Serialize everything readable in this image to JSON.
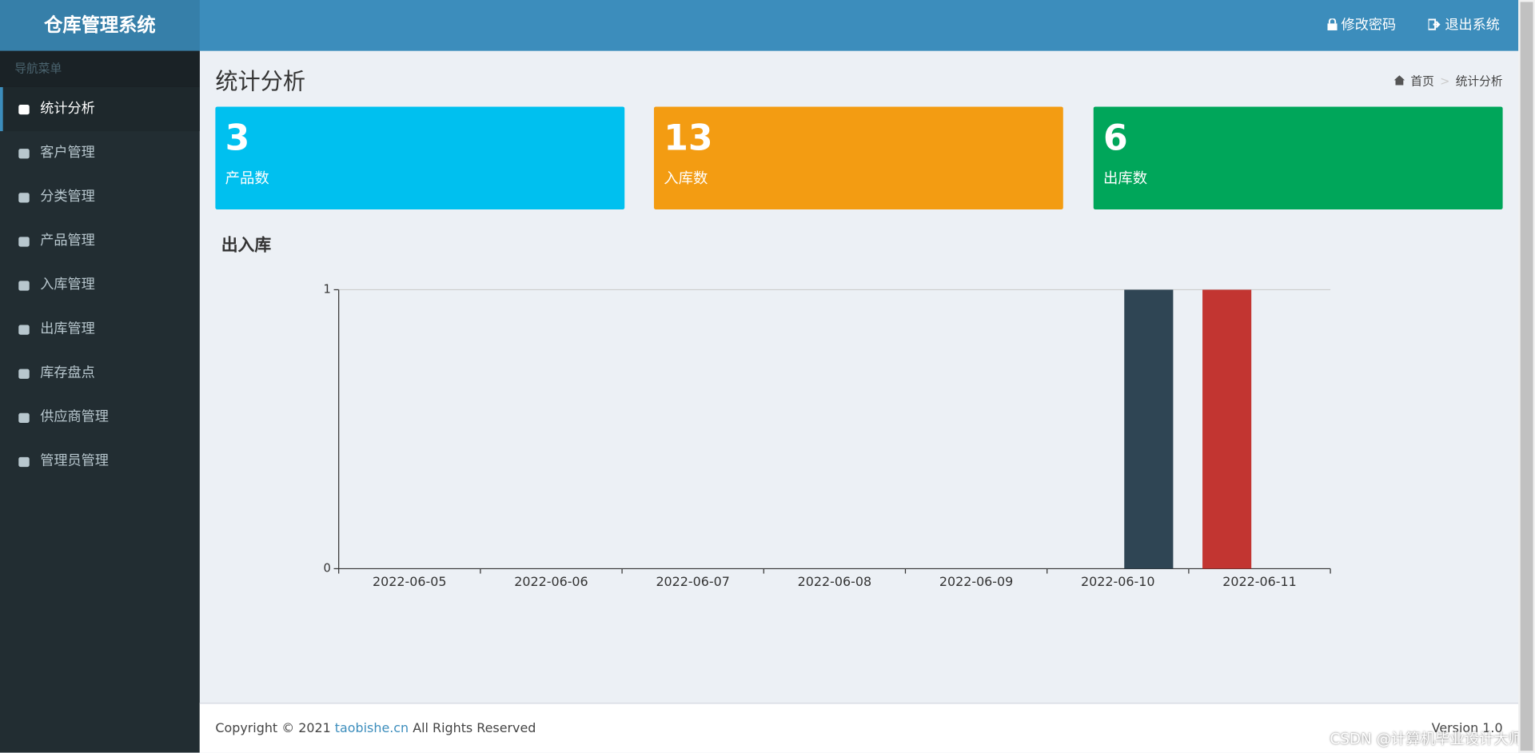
{
  "header": {
    "brand": "仓库管理系统",
    "links": [
      "修改密码",
      "退出系统"
    ]
  },
  "sidebar": {
    "heading": "导航菜单",
    "items": [
      "统计分析",
      "客户管理",
      "分类管理",
      "产品管理",
      "入库管理",
      "出库管理",
      "库存盘点",
      "供应商管理",
      "管理员管理"
    ]
  },
  "page": {
    "title": "统计分析",
    "breadcrumb": [
      "首页",
      "统计分析"
    ]
  },
  "stats": [
    {
      "value": 3,
      "label": "产品数",
      "color": "#00c0ef"
    },
    {
      "value": 13,
      "label": "入库数",
      "color": "#f39c12"
    },
    {
      "value": 6,
      "label": "出库数",
      "color": "#00a65a"
    }
  ],
  "chart_data": {
    "type": "bar",
    "title": "出入库",
    "categories": [
      "2022-06-05",
      "2022-06-06",
      "2022-06-07",
      "2022-06-08",
      "2022-06-09",
      "2022-06-10",
      "2022-06-11"
    ],
    "series": [
      {
        "color": "#c23531",
        "values": [
          0,
          0,
          0,
          0,
          0,
          0,
          1
        ]
      },
      {
        "color": "#2f4554",
        "values": [
          0,
          0,
          0,
          0,
          0,
          1,
          0
        ]
      }
    ],
    "ylim": [
      0,
      1
    ],
    "yticks": [
      0,
      1
    ],
    "grid": true
  },
  "footer": {
    "copyright": "Copyright © 2021",
    "link": "taobishe.cn",
    "rights": "All Rights Reserved",
    "version": "Version 1.0"
  },
  "watermark": "CSDN @计算机毕业设计大师"
}
